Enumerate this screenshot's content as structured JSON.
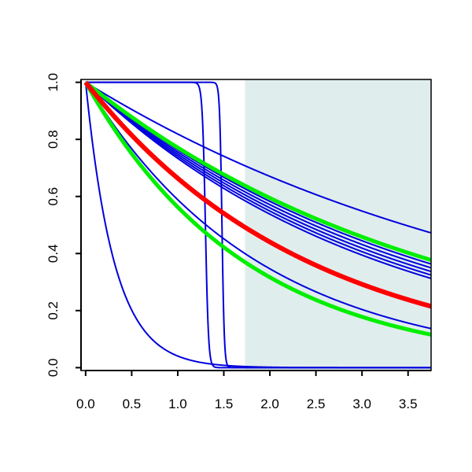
{
  "chart_data": {
    "type": "line",
    "title": "",
    "xlabel": "",
    "ylabel": "",
    "xlim": [
      -0.05,
      3.75
    ],
    "ylim": [
      -0.01,
      1.01
    ],
    "grid": false,
    "legend": "none",
    "x_ticks": [
      "0.0",
      "0.5",
      "1.0",
      "1.5",
      "2.0",
      "2.5",
      "3.0",
      "3.5"
    ],
    "x_tick_values": [
      0.0,
      0.5,
      1.0,
      1.5,
      2.0,
      2.5,
      3.0,
      3.5
    ],
    "y_ticks": [
      "0.0",
      "0.2",
      "0.4",
      "0.6",
      "0.8",
      "1.0"
    ],
    "y_tick_values": [
      0.0,
      0.2,
      0.4,
      0.6,
      0.8,
      1.0
    ],
    "shaded_region": {
      "x_start": 1.73,
      "x_end": 3.75,
      "color": "#e0eded"
    },
    "colors": {
      "blue": "#0000dd",
      "red": "#ff0000",
      "green": "#00ee00",
      "axis": "#000000"
    },
    "series": [
      {
        "kind": "exp",
        "rate": 0.2,
        "color": "#0000dd",
        "width": 2
      },
      {
        "kind": "exp",
        "rate": 0.27,
        "color": "#0000dd",
        "width": 2
      },
      {
        "kind": "exp",
        "rate": 0.28,
        "color": "#0000dd",
        "width": 2
      },
      {
        "kind": "exp",
        "rate": 0.29,
        "color": "#0000dd",
        "width": 2
      },
      {
        "kind": "exp",
        "rate": 0.3,
        "color": "#0000dd",
        "width": 2
      },
      {
        "kind": "exp",
        "rate": 0.31,
        "color": "#0000dd",
        "width": 2
      },
      {
        "kind": "exp",
        "rate": 0.53,
        "color": "#0000dd",
        "width": 2
      },
      {
        "kind": "exp",
        "rate": 3.2,
        "color": "#0000dd",
        "width": 2
      },
      {
        "kind": "step",
        "threshold": 1.3,
        "steepness": 60,
        "color": "#0000dd",
        "width": 2
      },
      {
        "kind": "step",
        "threshold": 1.48,
        "steepness": 80,
        "color": "#0000dd",
        "width": 2
      },
      {
        "kind": "exp",
        "rate": 0.26,
        "color": "#00ee00",
        "width": 5
      },
      {
        "kind": "exp",
        "rate": 0.575,
        "color": "#00ee00",
        "width": 5
      },
      {
        "kind": "exp",
        "rate": 0.41,
        "color": "#ff0000",
        "width": 6
      }
    ]
  }
}
